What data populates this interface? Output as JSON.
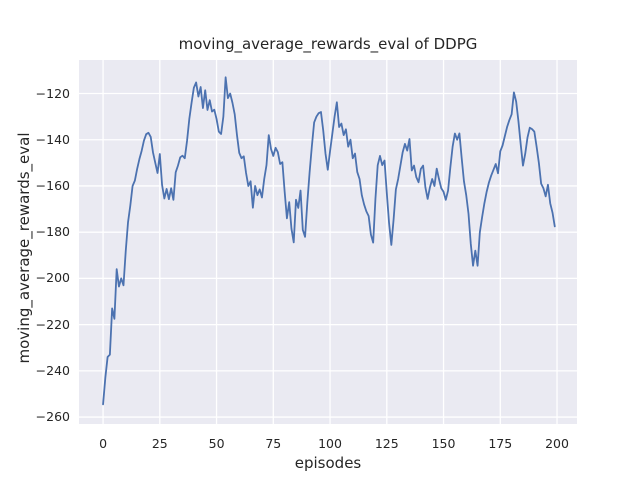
{
  "figure": {
    "title": "moving_average_rewards_eval of DDPG",
    "xlabel": "episodes",
    "ylabel": "moving_average_rewards_eval"
  },
  "colors": {
    "line": "#4c72b0",
    "plot_background": "#eaeaf2",
    "grid": "#ffffff",
    "text": "#262626",
    "figure_background": "#ffffff"
  },
  "chart_data": {
    "type": "line",
    "title": "moving_average_rewards_eval of DDPG",
    "xlabel": "episodes",
    "ylabel": "moving_average_rewards_eval",
    "grid": true,
    "legend": false,
    "x_start": 0,
    "x_step": 1,
    "xlim": [
      -10.6,
      208.8
    ],
    "ylim": [
      -263,
      -105.5
    ],
    "xtick_values": [
      0,
      25,
      50,
      75,
      100,
      125,
      150,
      175,
      200
    ],
    "xtick_labels": [
      "0",
      "25",
      "50",
      "75",
      "100",
      "125",
      "150",
      "175",
      "200"
    ],
    "ytick_values": [
      -120,
      -140,
      -160,
      -180,
      -200,
      -220,
      -240,
      -260
    ],
    "ytick_labels": [
      "−120",
      "−140",
      "−160",
      "−180",
      "−200",
      "−220",
      "−240",
      "−260"
    ],
    "series": [
      {
        "name": "moving_average_rewards_eval",
        "values": [
          -254.5,
          -243,
          -234,
          -233,
          -213,
          -217.5,
          -196,
          -203.5,
          -200,
          -203,
          -188,
          -175.7,
          -168.5,
          -160,
          -157.7,
          -152.7,
          -148.4,
          -144.8,
          -140.4,
          -137.6,
          -137,
          -138.8,
          -145.5,
          -150,
          -154.4,
          -146.2,
          -159.6,
          -165.4,
          -161.3,
          -165.7,
          -161,
          -166,
          -154.1,
          -151.2,
          -147.6,
          -146.9,
          -148,
          -140.5,
          -131,
          -124,
          -117.5,
          -115.2,
          -121.3,
          -117.2,
          -126.3,
          -118.6,
          -127.1,
          -122.9,
          -127.8,
          -127,
          -131,
          -136.5,
          -137.5,
          -130,
          -113,
          -122,
          -120,
          -124,
          -129,
          -138,
          -145.7,
          -148,
          -147.2,
          -154.4,
          -160,
          -158,
          -169.4,
          -160,
          -164,
          -161.5,
          -165,
          -157,
          -151,
          -138,
          -144,
          -147,
          -143.5,
          -145.4,
          -150.5,
          -149.7,
          -162.5,
          -174,
          -167,
          -178.5,
          -184.4,
          -166,
          -169.5,
          -162,
          -179,
          -182,
          -167,
          -154.1,
          -142.7,
          -132.5,
          -130,
          -128.5,
          -128,
          -136,
          -146,
          -153,
          -145,
          -137.5,
          -130,
          -123.8,
          -134.5,
          -133,
          -138,
          -135.5,
          -143,
          -140,
          -148,
          -146,
          -154,
          -157,
          -164,
          -168,
          -171,
          -173,
          -181,
          -184.5,
          -165.5,
          -151,
          -147,
          -151,
          -149,
          -163,
          -176,
          -185.5,
          -174.5,
          -161.5,
          -157,
          -151.2,
          -145.4,
          -141.8,
          -144.7,
          -139.7,
          -153.3,
          -151.2,
          -156.2,
          -158.4,
          -152.6,
          -151.2,
          -160.6,
          -165.6,
          -160.6,
          -157,
          -160,
          -152.5,
          -157,
          -161,
          -162.5,
          -166,
          -162,
          -152,
          -143,
          -137.3,
          -140,
          -137.3,
          -148,
          -158,
          -164,
          -172,
          -185,
          -194.5,
          -188,
          -194.5,
          -180,
          -173.5,
          -167.5,
          -162.5,
          -158.5,
          -155.5,
          -153,
          -150.5,
          -154.5,
          -145,
          -142.5,
          -138.5,
          -134.5,
          -131.5,
          -129,
          -119.5,
          -123.5,
          -132,
          -142,
          -151.2,
          -146,
          -139,
          -134.8,
          -135.4,
          -136.5,
          -143,
          -150,
          -159,
          -161,
          -164.5,
          -159.5,
          -167.5,
          -171.5,
          -177.5
        ]
      }
    ]
  }
}
